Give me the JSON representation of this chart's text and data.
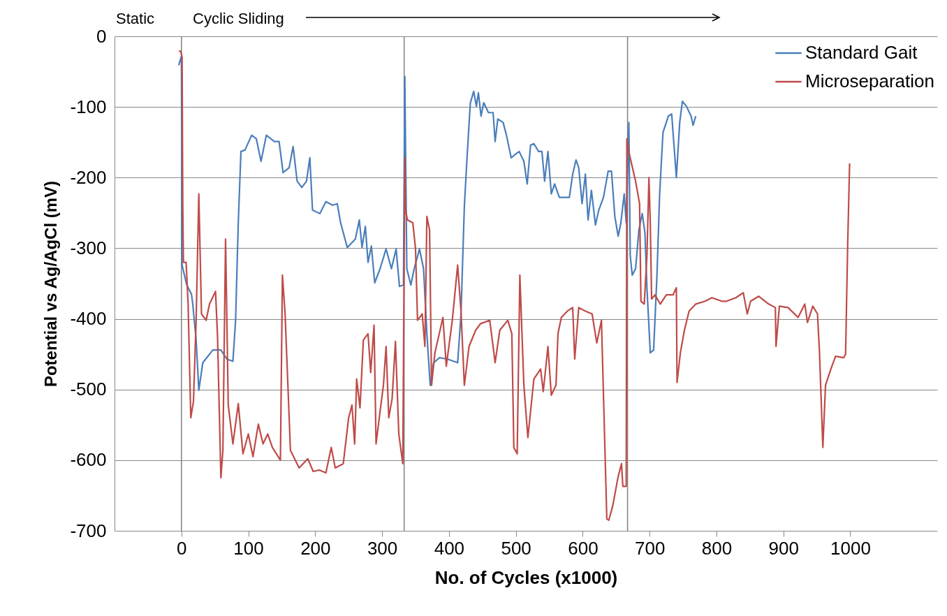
{
  "chart_data": {
    "type": "line",
    "xlabel": "No. of Cycles (x1000)",
    "ylabel": "Potential vs Ag/AgCl (mV)",
    "xlim": [
      -100,
      1130
    ],
    "xticks": [
      0,
      100,
      200,
      300,
      400,
      500,
      600,
      700,
      800,
      900,
      1000
    ],
    "ylim": [
      -700,
      0
    ],
    "yticks": [
      0,
      -100,
      -200,
      -300,
      -400,
      -500,
      -600,
      -700
    ],
    "grid": "y",
    "legend": "top right",
    "line_style": "solid",
    "marker": "none",
    "annotations": [
      "Static",
      "Cyclic Sliding"
    ],
    "ref_lines": [
      {
        "axis": "x",
        "value": 0,
        "color": "#808080"
      },
      {
        "axis": "x",
        "value": 333,
        "color": "#808080"
      },
      {
        "axis": "x",
        "value": 667,
        "color": "#808080"
      }
    ],
    "series": [
      {
        "name": "Standard Gait",
        "color": "#4a7ebb",
        "x": [
          -4,
          0,
          1,
          8,
          15,
          17,
          22,
          26,
          32,
          47,
          59,
          68,
          77,
          81,
          85,
          89,
          95,
          105,
          112,
          119,
          127,
          139,
          146,
          152,
          161,
          167,
          173,
          180,
          187,
          192,
          196,
          207,
          216,
          226,
          233,
          238,
          248,
          260,
          266,
          270,
          275,
          279,
          284,
          289,
          297,
          306,
          314,
          321,
          326,
          332,
          334,
          337,
          343,
          348,
          356,
          362,
          367,
          372,
          377,
          386,
          398,
          413,
          418,
          423,
          427,
          432,
          437,
          441,
          444,
          448,
          452,
          459,
          466,
          469,
          473,
          481,
          486,
          493,
          498,
          505,
          512,
          517,
          522,
          527,
          534,
          539,
          543,
          548,
          553,
          558,
          565,
          575,
          580,
          585,
          590,
          594,
          599,
          604,
          608,
          613,
          619,
          624,
          631,
          638,
          643,
          648,
          653,
          657,
          662,
          665,
          669,
          671,
          674,
          679,
          684,
          689,
          693,
          696,
          701,
          706,
          711,
          715,
          720,
          728,
          733,
          740,
          745,
          749,
          755,
          762,
          765,
          769
        ],
        "values": [
          -41,
          -28,
          -324,
          -352,
          -365,
          -379,
          -430,
          -501,
          -462,
          -444,
          -444,
          -457,
          -460,
          -402,
          -264,
          -163,
          -161,
          -140,
          -145,
          -177,
          -140,
          -149,
          -149,
          -193,
          -186,
          -156,
          -205,
          -214,
          -205,
          -172,
          -246,
          -251,
          -234,
          -239,
          -237,
          -264,
          -299,
          -287,
          -260,
          -299,
          -269,
          -320,
          -297,
          -349,
          -329,
          -301,
          -329,
          -301,
          -354,
          -352,
          -57,
          -329,
          -352,
          -329,
          -301,
          -329,
          -421,
          -494,
          -462,
          -455,
          -457,
          -462,
          -393,
          -241,
          -172,
          -94,
          -78,
          -99,
          -80,
          -113,
          -94,
          -108,
          -108,
          -149,
          -117,
          -122,
          -140,
          -172,
          -168,
          -163,
          -177,
          -209,
          -154,
          -152,
          -163,
          -163,
          -205,
          -163,
          -223,
          -209,
          -228,
          -228,
          -228,
          -195,
          -175,
          -186,
          -237,
          -195,
          -260,
          -218,
          -267,
          -246,
          -228,
          -191,
          -191,
          -255,
          -283,
          -264,
          -223,
          -264,
          -122,
          -310,
          -338,
          -329,
          -274,
          -251,
          -278,
          -356,
          -448,
          -444,
          -338,
          -223,
          -136,
          -113,
          -110,
          -200,
          -122,
          -92,
          -99,
          -113,
          -126,
          -113
        ]
      },
      {
        "name": "Microseparation",
        "color": "#be4b48",
        "x": [
          -4,
          -1,
          1,
          2,
          3,
          7,
          10,
          14,
          18,
          22,
          26,
          30,
          37,
          42,
          51,
          54,
          59,
          62,
          66,
          70,
          77,
          85,
          92,
          100,
          107,
          115,
          122,
          129,
          136,
          148,
          151,
          155,
          163,
          176,
          189,
          197,
          206,
          216,
          224,
          230,
          242,
          250,
          255,
          259,
          262,
          267,
          272,
          279,
          283,
          288,
          291,
          297,
          302,
          306,
          310,
          315,
          320,
          325,
          331,
          334,
          335,
          338,
          346,
          350,
          353,
          360,
          364,
          367,
          371,
          374,
          379,
          391,
          396,
          405,
          413,
          418,
          423,
          430,
          440,
          447,
          461,
          469,
          476,
          488,
          494,
          497,
          502,
          506,
          512,
          518,
          527,
          537,
          541,
          548,
          553,
          560,
          563,
          568,
          577,
          585,
          588,
          594,
          604,
          614,
          621,
          628,
          631,
          636,
          639,
          645,
          653,
          658,
          660,
          665,
          666,
          670,
          679,
          685,
          687,
          692,
          696,
          699,
          701,
          703,
          708,
          716,
          725,
          735,
          740,
          741,
          746,
          752,
          759,
          769,
          783,
          793,
          808,
          815,
          829,
          840,
          846,
          851,
          863,
          878,
          888,
          889,
          894,
          907,
          922,
          932,
          936,
          944,
          951,
          954,
          959,
          963,
          971,
          978,
          990,
          993,
          996,
          999
        ],
        "values": [
          -21,
          -21,
          -30,
          -237,
          -320,
          -320,
          -379,
          -540,
          -517,
          -402,
          -223,
          -393,
          -402,
          -379,
          -361,
          -425,
          -625,
          -586,
          -287,
          -522,
          -577,
          -520,
          -591,
          -563,
          -595,
          -549,
          -577,
          -563,
          -582,
          -600,
          -338,
          -393,
          -586,
          -611,
          -598,
          -616,
          -614,
          -618,
          -582,
          -611,
          -605,
          -540,
          -522,
          -577,
          -485,
          -526,
          -430,
          -421,
          -476,
          -409,
          -577,
          -531,
          -494,
          -439,
          -540,
          -513,
          -432,
          -563,
          -605,
          -172,
          -246,
          -260,
          -264,
          -301,
          -402,
          -393,
          -439,
          -255,
          -274,
          -494,
          -448,
          -398,
          -467,
          -402,
          -324,
          -389,
          -494,
          -439,
          -416,
          -407,
          -402,
          -462,
          -416,
          -402,
          -421,
          -582,
          -591,
          -338,
          -494,
          -568,
          -485,
          -471,
          -503,
          -439,
          -508,
          -494,
          -421,
          -398,
          -389,
          -384,
          -457,
          -384,
          -389,
          -393,
          -434,
          -402,
          -508,
          -683,
          -685,
          -664,
          -623,
          -605,
          -637,
          -637,
          -145,
          -168,
          -205,
          -237,
          -375,
          -379,
          -310,
          -200,
          -264,
          -372,
          -366,
          -379,
          -366,
          -366,
          -356,
          -490,
          -448,
          -416,
          -389,
          -379,
          -375,
          -370,
          -375,
          -375,
          -370,
          -363,
          -393,
          -375,
          -368,
          -379,
          -384,
          -439,
          -382,
          -384,
          -398,
          -379,
          -405,
          -382,
          -393,
          -448,
          -582,
          -494,
          -471,
          -453,
          -455,
          -450,
          -300,
          -180
        ]
      }
    ]
  }
}
